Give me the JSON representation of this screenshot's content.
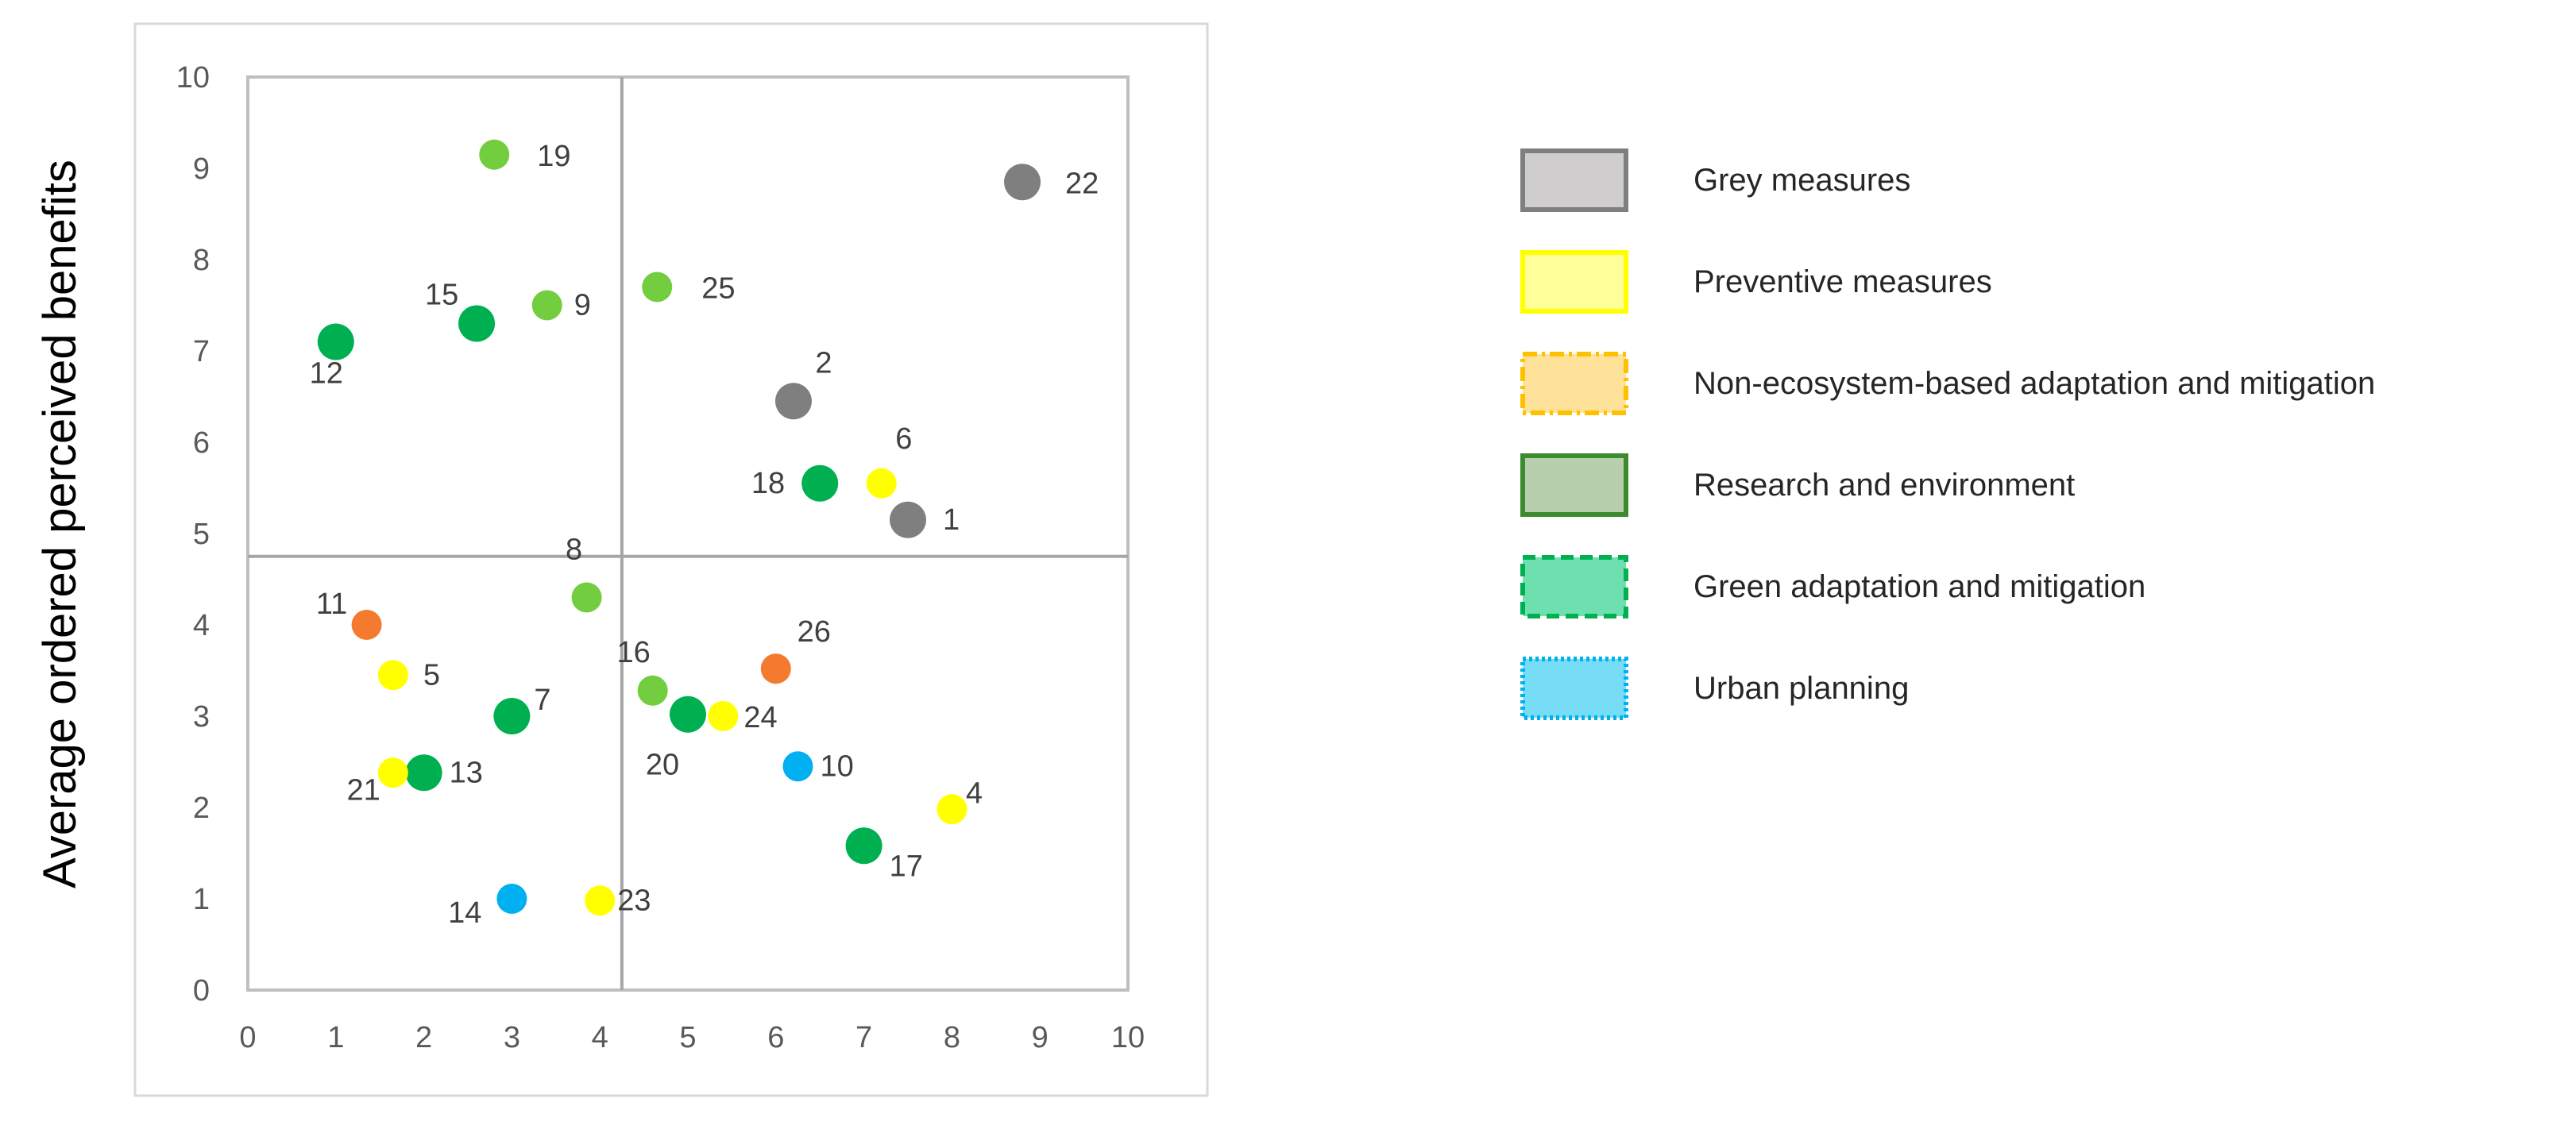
{
  "chart_data": {
    "type": "scatter",
    "title": "",
    "xlabel": "",
    "ylabel": "Average ordered perceived benefits",
    "xlim": [
      0,
      10
    ],
    "ylim": [
      0,
      10
    ],
    "x_ticks": [
      "0",
      "1",
      "2",
      "3",
      "4",
      "5",
      "6",
      "7",
      "8",
      "9",
      "10"
    ],
    "y_ticks": [
      "0",
      "1",
      "2",
      "3",
      "4",
      "5",
      "6",
      "7",
      "8",
      "9",
      "10"
    ],
    "grid": false,
    "quadrant_lines": {
      "x": 4.25,
      "y": 4.75
    },
    "legend_position": "right",
    "legend": [
      {
        "label": "Grey measures",
        "fill": "#cfcdcd",
        "stroke": "#7f7f7f",
        "dash": "solid"
      },
      {
        "label": "Preventive measures",
        "fill": "#ffff99",
        "stroke": "#ffff00",
        "dash": "solid"
      },
      {
        "label": "Non-ecosystem-based adaptation and mitigation",
        "fill": "#ffe29a",
        "stroke": "#ffc000",
        "dash": "dashdot"
      },
      {
        "label": "Research and environment",
        "fill": "#b8cfae",
        "stroke": "#3d8b2f",
        "dash": "solid"
      },
      {
        "label": "Green adaptation and mitigation",
        "fill": "#6ee0b0",
        "stroke": "#00b050",
        "dash": "dash"
      },
      {
        "label": "Urban planning",
        "fill": "#77ddf7",
        "stroke": "#00b0f0",
        "dash": "dot"
      }
    ],
    "colors": {
      "grey": "#7f7f7f",
      "yellow": "#ffff00",
      "orange": "#f47a30",
      "dark_green": "#00b050",
      "light_green": "#72cd3f",
      "blue": "#00b0f0"
    },
    "points": [
      {
        "label": "1",
        "x": 7.5,
        "y": 5.15,
        "color": "grey",
        "size": "large"
      },
      {
        "label": "2",
        "x": 6.2,
        "y": 6.45,
        "color": "grey",
        "size": "large"
      },
      {
        "label": "4",
        "x": 8.0,
        "y": 1.98,
        "color": "yellow",
        "size": "small"
      },
      {
        "label": "5",
        "x": 1.65,
        "y": 3.45,
        "color": "yellow",
        "size": "small"
      },
      {
        "label": "6",
        "x": 7.2,
        "y": 5.55,
        "color": "yellow",
        "size": "small"
      },
      {
        "label": "7",
        "x": 3.0,
        "y": 3.0,
        "color": "dark_green",
        "size": "large"
      },
      {
        "label": "8",
        "x": 3.85,
        "y": 4.3,
        "color": "light_green",
        "size": "small"
      },
      {
        "label": "9",
        "x": 3.4,
        "y": 7.5,
        "color": "light_green",
        "size": "small"
      },
      {
        "label": "10",
        "x": 6.25,
        "y": 2.45,
        "color": "blue",
        "size": "small"
      },
      {
        "label": "11",
        "x": 1.35,
        "y": 4.0,
        "color": "orange",
        "size": "small"
      },
      {
        "label": "12",
        "x": 1.0,
        "y": 7.1,
        "color": "dark_green",
        "size": "large"
      },
      {
        "label": "13",
        "x": 2.0,
        "y": 2.38,
        "color": "dark_green",
        "size": "large"
      },
      {
        "label": "14",
        "x": 3.0,
        "y": 1.0,
        "color": "blue",
        "size": "small"
      },
      {
        "label": "15",
        "x": 2.6,
        "y": 7.3,
        "color": "dark_green",
        "size": "large"
      },
      {
        "label": "16",
        "x": 4.6,
        "y": 3.28,
        "color": "light_green",
        "size": "small"
      },
      {
        "label": "17",
        "x": 7.0,
        "y": 1.58,
        "color": "dark_green",
        "size": "large"
      },
      {
        "label": "18",
        "x": 6.5,
        "y": 5.55,
        "color": "dark_green",
        "size": "large"
      },
      {
        "label": "19",
        "x": 2.8,
        "y": 9.15,
        "color": "light_green",
        "size": "small"
      },
      {
        "label": "20",
        "x": 5.0,
        "y": 3.02,
        "color": "dark_green",
        "size": "large"
      },
      {
        "label": "21",
        "x": 1.65,
        "y": 2.38,
        "color": "yellow",
        "size": "small"
      },
      {
        "label": "22",
        "x": 8.8,
        "y": 8.85,
        "color": "grey",
        "size": "large"
      },
      {
        "label": "23",
        "x": 4.0,
        "y": 0.98,
        "color": "yellow",
        "size": "small"
      },
      {
        "label": "24",
        "x": 5.4,
        "y": 3.0,
        "color": "yellow",
        "size": "small"
      },
      {
        "label": "25",
        "x": 4.65,
        "y": 7.7,
        "color": "light_green",
        "size": "small"
      },
      {
        "label": "26",
        "x": 6.0,
        "y": 3.52,
        "color": "orange",
        "size": "small"
      }
    ]
  }
}
